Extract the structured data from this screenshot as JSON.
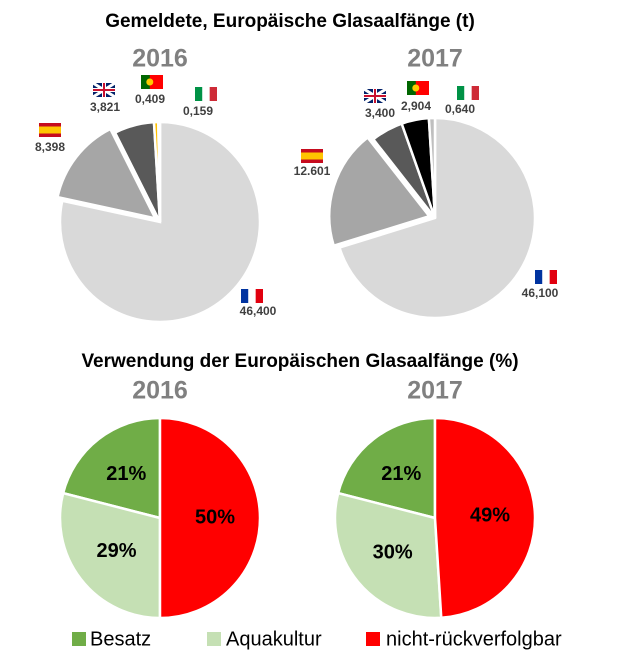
{
  "headings": [
    "Gemeldete, Europäische Glasaalfänge (t)",
    "Verwendung der Europäischen Glasaalfänge (%)"
  ],
  "chart_data": [
    {
      "type": "pie",
      "title": "2016",
      "values": [
        46.4,
        8.398,
        3.821,
        0.409,
        0.159
      ],
      "value_labels": [
        "46,400",
        "8,398",
        "3,821",
        "0,409",
        "0,159"
      ],
      "colors": [
        "#d9d9d9",
        "#a6a6a6",
        "#595959",
        "#ffc000",
        "#bfbfbf"
      ]
    },
    {
      "type": "pie",
      "title": "2017",
      "values": [
        46.1,
        12.601,
        3.4,
        2.904,
        0.64
      ],
      "value_labels": [
        "46,100",
        "12.601",
        "3,400",
        "2,904",
        "0,640"
      ],
      "colors": [
        "#d9d9d9",
        "#a6a6a6",
        "#595959",
        "#000000",
        "#bfbfbf"
      ]
    },
    {
      "type": "pie",
      "title": "2016",
      "categories": [
        "Besatz",
        "Aquakultur",
        "nicht-rückverfolgbar"
      ],
      "values": [
        21,
        29,
        50
      ],
      "value_labels": [
        "21%",
        "29%",
        "50%"
      ],
      "colors": [
        "#70ad47",
        "#c5e0b4",
        "#ff0000"
      ]
    },
    {
      "type": "pie",
      "title": "2017",
      "values": [
        21,
        30,
        49
      ],
      "value_labels": [
        "21%",
        "30%",
        "49%"
      ],
      "colors": [
        "#70ad47",
        "#c5e0b4",
        "#ff0000"
      ]
    }
  ]
}
